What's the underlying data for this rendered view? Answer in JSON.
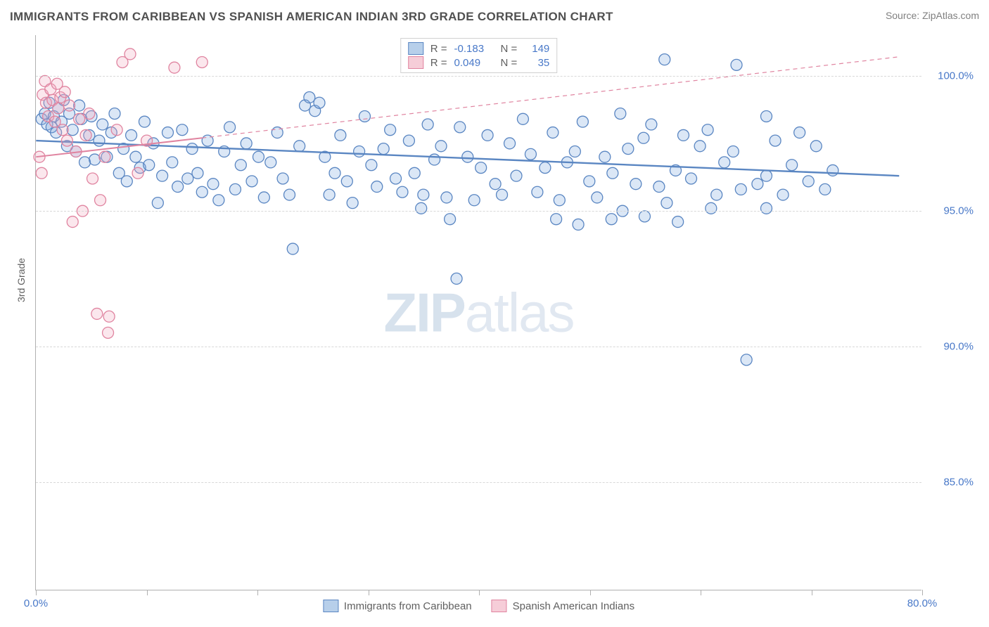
{
  "title": "IMMIGRANTS FROM CARIBBEAN VS SPANISH AMERICAN INDIAN 3RD GRADE CORRELATION CHART",
  "source": "Source: ZipAtlas.com",
  "watermark": {
    "part1": "ZIP",
    "part2": "atlas"
  },
  "ylabel": "3rd Grade",
  "chart": {
    "type": "scatter",
    "background_color": "#ffffff",
    "grid_color": "#d8d8d8",
    "axis_color": "#b0b0b0",
    "tick_label_color": "#4878c8",
    "xlim": [
      0,
      80
    ],
    "ylim": [
      81,
      101.5
    ],
    "xticks": [
      0,
      10,
      20,
      30,
      40,
      50,
      60,
      70,
      80
    ],
    "xtick_labels": [
      "0.0%",
      "",
      "",
      "",
      "",
      "",
      "",
      "",
      "80.0%"
    ],
    "yticks": [
      85,
      90,
      95,
      100
    ],
    "ytick_labels": [
      "85.0%",
      "90.0%",
      "95.0%",
      "100.0%"
    ],
    "marker_radius": 8,
    "marker_fill_opacity": 0.28,
    "marker_stroke_width": 1.3,
    "series": [
      {
        "id": "s1",
        "label": "Immigrants from Caribbean",
        "color": "#7ea8dd",
        "stroke": "#5a86c2",
        "trend": {
          "x1": 0,
          "y1": 97.6,
          "x2": 78,
          "y2": 96.3,
          "width": 2.4,
          "dash": ""
        },
        "r": -0.183,
        "n": 149,
        "points": [
          [
            0.5,
            98.4
          ],
          [
            0.8,
            98.6
          ],
          [
            1.0,
            98.2
          ],
          [
            1.2,
            99.0
          ],
          [
            1.4,
            98.1
          ],
          [
            1.6,
            98.5
          ],
          [
            1.8,
            97.9
          ],
          [
            2.0,
            98.8
          ],
          [
            2.3,
            98.3
          ],
          [
            2.5,
            99.1
          ],
          [
            2.8,
            97.4
          ],
          [
            3.0,
            98.6
          ],
          [
            3.3,
            98.0
          ],
          [
            3.6,
            97.2
          ],
          [
            3.9,
            98.9
          ],
          [
            4.1,
            98.4
          ],
          [
            4.4,
            96.8
          ],
          [
            4.8,
            97.8
          ],
          [
            5.0,
            98.5
          ],
          [
            5.3,
            96.9
          ],
          [
            5.7,
            97.6
          ],
          [
            6.0,
            98.2
          ],
          [
            6.4,
            97.0
          ],
          [
            6.8,
            97.9
          ],
          [
            7.1,
            98.6
          ],
          [
            7.5,
            96.4
          ],
          [
            7.9,
            97.3
          ],
          [
            8.2,
            96.1
          ],
          [
            8.6,
            97.8
          ],
          [
            9.0,
            97.0
          ],
          [
            9.4,
            96.6
          ],
          [
            9.8,
            98.3
          ],
          [
            10.2,
            96.7
          ],
          [
            10.6,
            97.5
          ],
          [
            11.0,
            95.3
          ],
          [
            11.4,
            96.3
          ],
          [
            11.9,
            97.9
          ],
          [
            12.3,
            96.8
          ],
          [
            12.8,
            95.9
          ],
          [
            13.2,
            98.0
          ],
          [
            13.7,
            96.2
          ],
          [
            14.1,
            97.3
          ],
          [
            14.6,
            96.4
          ],
          [
            15.0,
            95.7
          ],
          [
            15.5,
            97.6
          ],
          [
            16.0,
            96.0
          ],
          [
            16.5,
            95.4
          ],
          [
            17.0,
            97.2
          ],
          [
            17.5,
            98.1
          ],
          [
            18.0,
            95.8
          ],
          [
            18.5,
            96.7
          ],
          [
            19.0,
            97.5
          ],
          [
            19.5,
            96.1
          ],
          [
            20.1,
            97.0
          ],
          [
            20.6,
            95.5
          ],
          [
            21.2,
            96.8
          ],
          [
            21.8,
            97.9
          ],
          [
            22.3,
            96.2
          ],
          [
            22.9,
            95.6
          ],
          [
            23.2,
            93.6
          ],
          [
            23.8,
            97.4
          ],
          [
            24.3,
            98.9
          ],
          [
            24.7,
            99.2
          ],
          [
            25.2,
            98.7
          ],
          [
            25.6,
            99.0
          ],
          [
            26.1,
            97.0
          ],
          [
            26.5,
            95.6
          ],
          [
            27.0,
            96.4
          ],
          [
            27.5,
            97.8
          ],
          [
            28.1,
            96.1
          ],
          [
            28.6,
            95.3
          ],
          [
            29.2,
            97.2
          ],
          [
            29.7,
            98.5
          ],
          [
            30.3,
            96.7
          ],
          [
            30.8,
            95.9
          ],
          [
            31.4,
            97.3
          ],
          [
            32.0,
            98.0
          ],
          [
            32.5,
            96.2
          ],
          [
            33.1,
            95.7
          ],
          [
            33.7,
            97.6
          ],
          [
            34.2,
            96.4
          ],
          [
            34.8,
            95.1
          ],
          [
            35.0,
            95.6
          ],
          [
            35.4,
            98.2
          ],
          [
            36.0,
            96.9
          ],
          [
            36.6,
            97.4
          ],
          [
            37.1,
            95.5
          ],
          [
            37.4,
            94.7
          ],
          [
            38.3,
            98.1
          ],
          [
            39.0,
            97.0
          ],
          [
            39.6,
            95.4
          ],
          [
            40.2,
            96.6
          ],
          [
            40.8,
            97.8
          ],
          [
            41.5,
            96.0
          ],
          [
            42.1,
            95.6
          ],
          [
            42.8,
            97.5
          ],
          [
            43.4,
            96.3
          ],
          [
            44.0,
            98.4
          ],
          [
            44.7,
            97.1
          ],
          [
            45.3,
            95.7
          ],
          [
            38.0,
            92.5
          ],
          [
            46.0,
            96.6
          ],
          [
            46.7,
            97.9
          ],
          [
            47.3,
            95.4
          ],
          [
            48.0,
            96.8
          ],
          [
            48.7,
            97.2
          ],
          [
            49.4,
            98.3
          ],
          [
            50.0,
            96.1
          ],
          [
            50.7,
            95.5
          ],
          [
            51.4,
            97.0
          ],
          [
            52.1,
            96.4
          ],
          [
            52.8,
            98.6
          ],
          [
            53.5,
            97.3
          ],
          [
            54.2,
            96.0
          ],
          [
            54.9,
            97.7
          ],
          [
            55.6,
            98.2
          ],
          [
            56.3,
            95.9
          ],
          [
            56.8,
            100.6
          ],
          [
            57.8,
            96.5
          ],
          [
            58.5,
            97.8
          ],
          [
            59.2,
            96.2
          ],
          [
            60.0,
            97.4
          ],
          [
            60.7,
            98.0
          ],
          [
            61.5,
            95.6
          ],
          [
            62.2,
            96.8
          ],
          [
            63.0,
            97.2
          ],
          [
            63.7,
            95.8
          ],
          [
            63.3,
            100.4
          ],
          [
            64.2,
            89.5
          ],
          [
            65.2,
            96.0
          ],
          [
            66.0,
            98.5
          ],
          [
            66.0,
            96.3
          ],
          [
            66.8,
            97.6
          ],
          [
            67.5,
            95.6
          ],
          [
            68.3,
            96.7
          ],
          [
            69.0,
            97.9
          ],
          [
            69.8,
            96.1
          ],
          [
            70.5,
            97.4
          ],
          [
            71.3,
            95.8
          ],
          [
            72.0,
            96.5
          ],
          [
            53.0,
            95.0
          ],
          [
            57.0,
            95.3
          ],
          [
            47.0,
            94.7
          ],
          [
            49.0,
            94.5
          ],
          [
            52.0,
            94.7
          ],
          [
            55.0,
            94.8
          ],
          [
            58.0,
            94.6
          ],
          [
            61.0,
            95.1
          ],
          [
            66.0,
            95.1
          ]
        ]
      },
      {
        "id": "s2",
        "label": "Spanish American Indians",
        "color": "#f0a8bd",
        "stroke": "#e084a0",
        "trend": {
          "x1": 0,
          "y1": 97.0,
          "x2": 15,
          "y2": 97.7,
          "width": 2.0,
          "dash": ""
        },
        "trend_ext": {
          "x1": 15,
          "y1": 97.7,
          "x2": 78,
          "y2": 100.7,
          "width": 1.2,
          "dash": "6,5"
        },
        "r": 0.049,
        "n": 35,
        "points": [
          [
            0.3,
            97.0
          ],
          [
            0.5,
            96.4
          ],
          [
            0.6,
            99.3
          ],
          [
            0.8,
            99.8
          ],
          [
            0.9,
            99.0
          ],
          [
            1.1,
            98.5
          ],
          [
            1.3,
            99.5
          ],
          [
            1.5,
            99.1
          ],
          [
            1.7,
            98.3
          ],
          [
            1.9,
            99.7
          ],
          [
            2.0,
            98.8
          ],
          [
            2.2,
            99.2
          ],
          [
            2.4,
            98.0
          ],
          [
            2.6,
            99.4
          ],
          [
            2.8,
            97.6
          ],
          [
            3.0,
            98.9
          ],
          [
            3.3,
            94.6
          ],
          [
            3.6,
            97.2
          ],
          [
            3.9,
            98.4
          ],
          [
            4.2,
            95.0
          ],
          [
            4.5,
            97.8
          ],
          [
            4.8,
            98.6
          ],
          [
            5.1,
            96.2
          ],
          [
            5.5,
            91.2
          ],
          [
            5.8,
            95.4
          ],
          [
            6.2,
            97.0
          ],
          [
            6.5,
            90.5
          ],
          [
            6.6,
            91.1
          ],
          [
            7.3,
            98.0
          ],
          [
            7.8,
            100.5
          ],
          [
            8.5,
            100.8
          ],
          [
            9.2,
            96.4
          ],
          [
            10.0,
            97.6
          ],
          [
            12.5,
            100.3
          ],
          [
            15.0,
            100.5
          ]
        ]
      }
    ]
  },
  "legend_top": {
    "rows": [
      {
        "swatch_fill": "#b7cfea",
        "swatch_border": "#5a86c2",
        "r_label": "R =",
        "r_value": "-0.183",
        "n_label": "N =",
        "n_value": "149"
      },
      {
        "swatch_fill": "#f6cdd8",
        "swatch_border": "#e084a0",
        "r_label": "R =",
        "r_value": "0.049",
        "n_label": "N =",
        "n_value": "35"
      }
    ]
  },
  "legend_bottom": {
    "items": [
      {
        "swatch_fill": "#b7cfea",
        "swatch_border": "#5a86c2",
        "label": "Immigrants from Caribbean"
      },
      {
        "swatch_fill": "#f6cdd8",
        "swatch_border": "#e084a0",
        "label": "Spanish American Indians"
      }
    ]
  }
}
